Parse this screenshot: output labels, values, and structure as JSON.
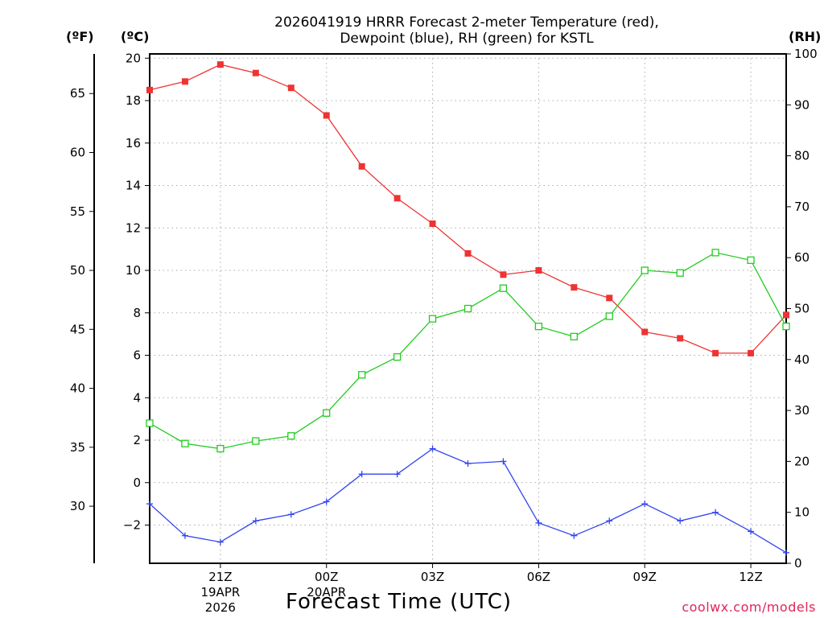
{
  "chart_data": {
    "type": "line",
    "title_line1": "2026041919 HRRR Forecast 2-meter Temperature (red),",
    "title_line2": "Dewpoint (blue), RH (green) for KSTL",
    "unit_f": "(ºF)",
    "unit_c": "(ºC)",
    "unit_rh": "(RH)",
    "xlabel": "Forecast Time (UTC)",
    "credit": "coolwx.com/models",
    "ylim_c": [
      -3.8,
      20.2
    ],
    "ylim_rh": [
      0,
      100
    ],
    "x_range": [
      19,
      37
    ],
    "celsius_ticks": [
      "20",
      "18",
      "16",
      "14",
      "12",
      "10",
      "8",
      "6",
      "4",
      "2",
      "0",
      "-2"
    ],
    "fahrenheit_ticks": [
      "65",
      "60",
      "55",
      "50",
      "45",
      "40",
      "35",
      "30"
    ],
    "rh_ticks": [
      "100",
      "90",
      "80",
      "70",
      "60",
      "50",
      "40",
      "30",
      "20",
      "10",
      "0"
    ],
    "x_ticks": [
      {
        "hour": 21,
        "label": "21Z",
        "date": "19APR",
        "year": "2026"
      },
      {
        "hour": 24,
        "label": "00Z",
        "date": "20APR",
        "year": ""
      },
      {
        "hour": 27,
        "label": "03Z",
        "date": "",
        "year": ""
      },
      {
        "hour": 30,
        "label": "06Z",
        "date": "",
        "year": ""
      },
      {
        "hour": 33,
        "label": "09Z",
        "date": "",
        "year": ""
      },
      {
        "hour": 36,
        "label": "12Z",
        "date": "",
        "year": ""
      }
    ],
    "hours": [
      19,
      20,
      21,
      22,
      23,
      24,
      25,
      26,
      27,
      28,
      29,
      30,
      31,
      32,
      33,
      34,
      35,
      36,
      37
    ],
    "series": [
      {
        "name": "Temperature",
        "axis": "celsius",
        "color": "#ee3333",
        "marker": "filled-square",
        "values": [
          18.5,
          18.9,
          19.7,
          19.3,
          18.6,
          17.3,
          14.9,
          13.4,
          12.2,
          10.8,
          9.8,
          10.0,
          9.2,
          8.7,
          7.1,
          6.8,
          6.1,
          6.1,
          7.9
        ]
      },
      {
        "name": "Dewpoint",
        "axis": "celsius",
        "color": "#3344ee",
        "marker": "plus",
        "values": [
          -1.0,
          -2.5,
          -2.8,
          -1.8,
          -1.5,
          -0.9,
          0.4,
          0.4,
          1.6,
          0.9,
          1.0,
          -1.9,
          -2.5,
          -1.8,
          -1.0,
          -1.8,
          -1.4,
          -2.3,
          -3.3
        ]
      },
      {
        "name": "Relative Humidity",
        "axis": "rh",
        "color": "#22cc22",
        "marker": "open-square",
        "values": [
          27.5,
          23.5,
          22.5,
          24.0,
          25.0,
          29.5,
          37.0,
          40.5,
          48.0,
          50.0,
          54.0,
          46.5,
          44.5,
          48.5,
          57.5,
          57.0,
          61.0,
          59.5,
          46.5
        ]
      }
    ]
  }
}
